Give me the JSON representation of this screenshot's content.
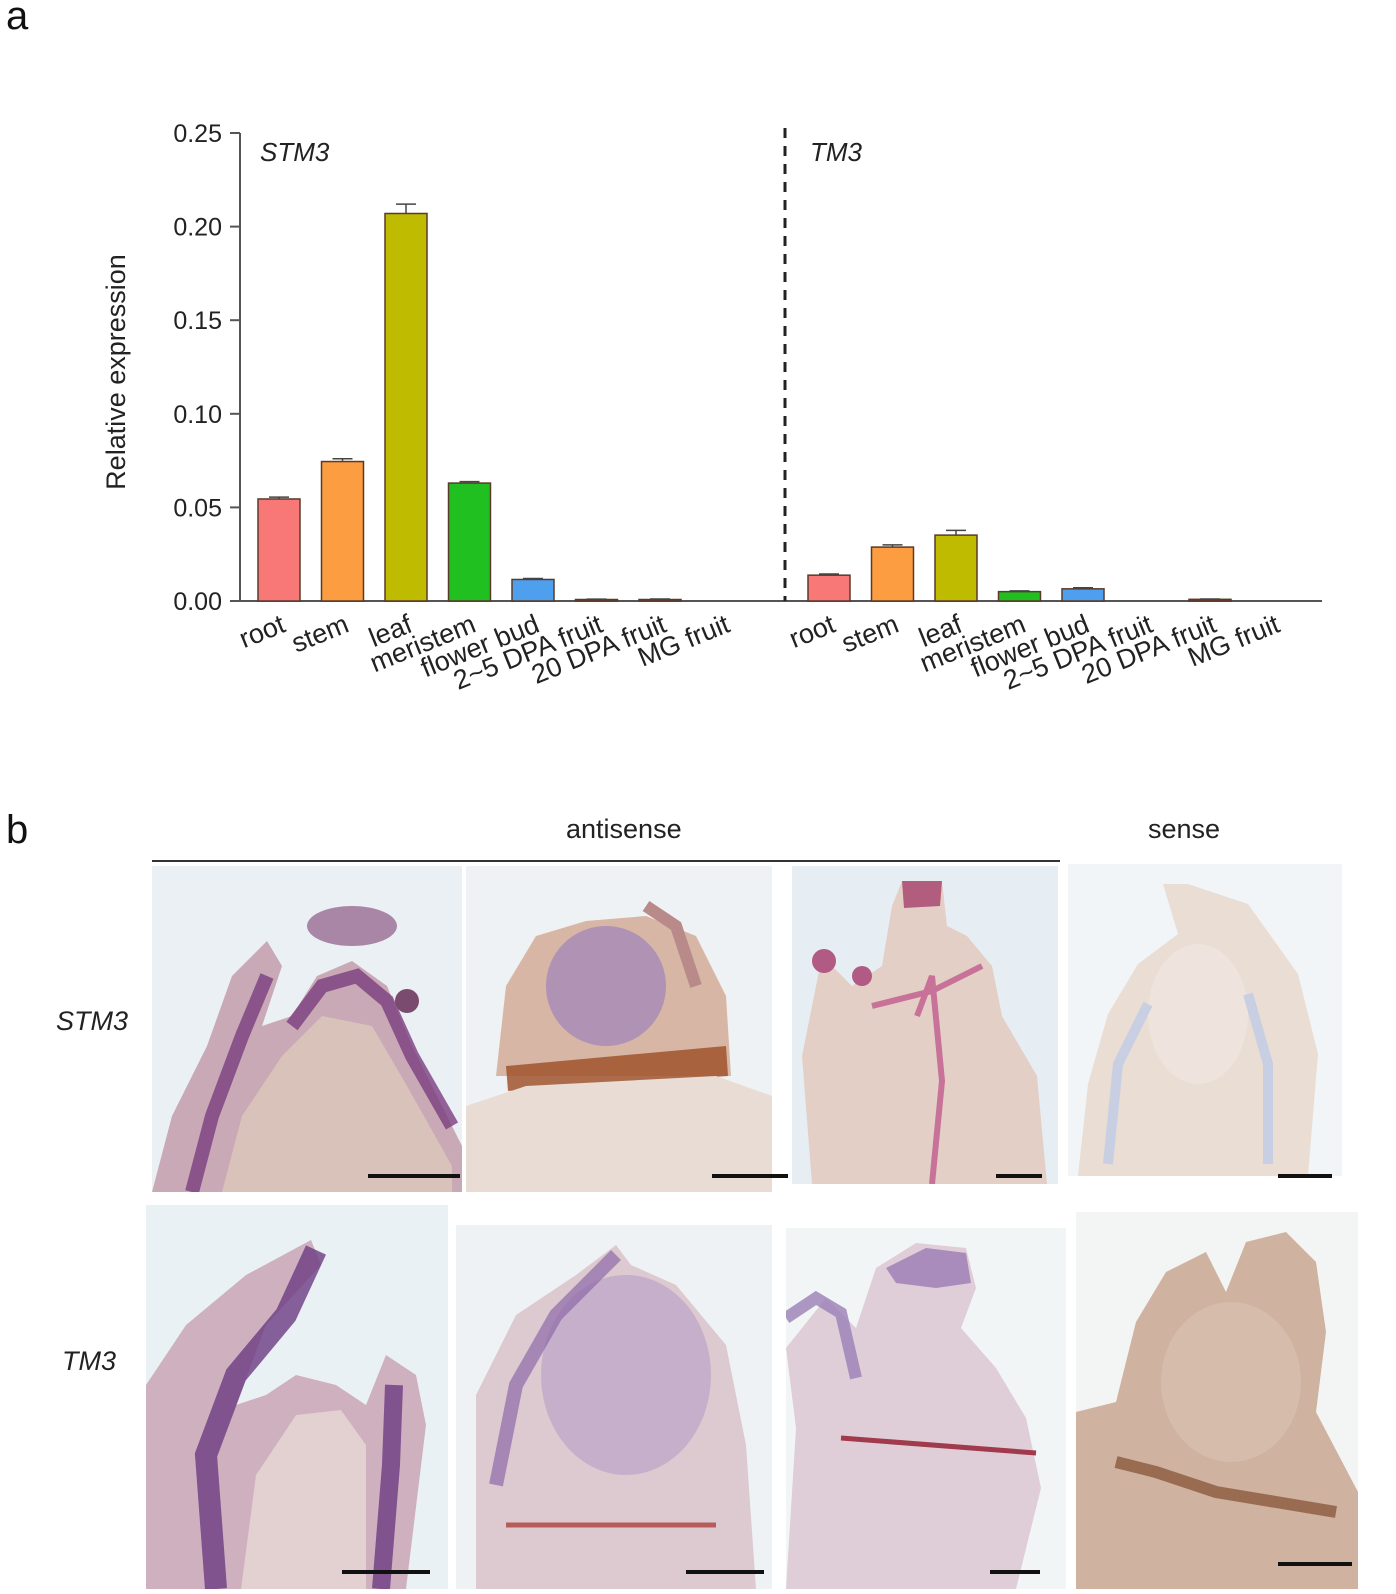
{
  "panel_a_label": "a",
  "panel_b_label": "b",
  "chart_data": {
    "type": "bar",
    "ylabel": "Relative expression",
    "ylim": [
      0,
      0.25
    ],
    "yticks": [
      "0.00",
      "0.05",
      "0.10",
      "0.15",
      "0.20",
      "0.25"
    ],
    "grid": false,
    "categories": [
      "root",
      "stem",
      "leaf",
      "meristem",
      "flower bud",
      "2~5 DPA fruit",
      "20 DPA fruit",
      "MG fruit"
    ],
    "bar_colors": [
      "#f87878",
      "#fb9d40",
      "#bfbb00",
      "#1fc01f",
      "#4f9fef",
      "#7a3030",
      "#7a3030",
      "#7a3030"
    ],
    "series": [
      {
        "name": "STM3",
        "values": [
          0.0545,
          0.0745,
          0.207,
          0.063,
          0.0115,
          0.0008,
          0.0008,
          0.0
        ],
        "errors": [
          0.001,
          0.0015,
          0.005,
          0.0008,
          0.0005,
          0.0002,
          0.0003,
          0.0
        ]
      },
      {
        "name": "TM3",
        "values": [
          0.0138,
          0.0288,
          0.0352,
          0.005,
          0.0065,
          0.0,
          0.0009,
          0.0
        ],
        "errors": [
          0.0006,
          0.0012,
          0.0025,
          0.0004,
          0.0006,
          0.0,
          0.0002,
          0.0
        ]
      }
    ]
  },
  "panel_b": {
    "antisense_label": "antisense",
    "sense_label": "sense",
    "rows": [
      {
        "label": "STM3"
      },
      {
        "label": "TM3"
      }
    ]
  }
}
